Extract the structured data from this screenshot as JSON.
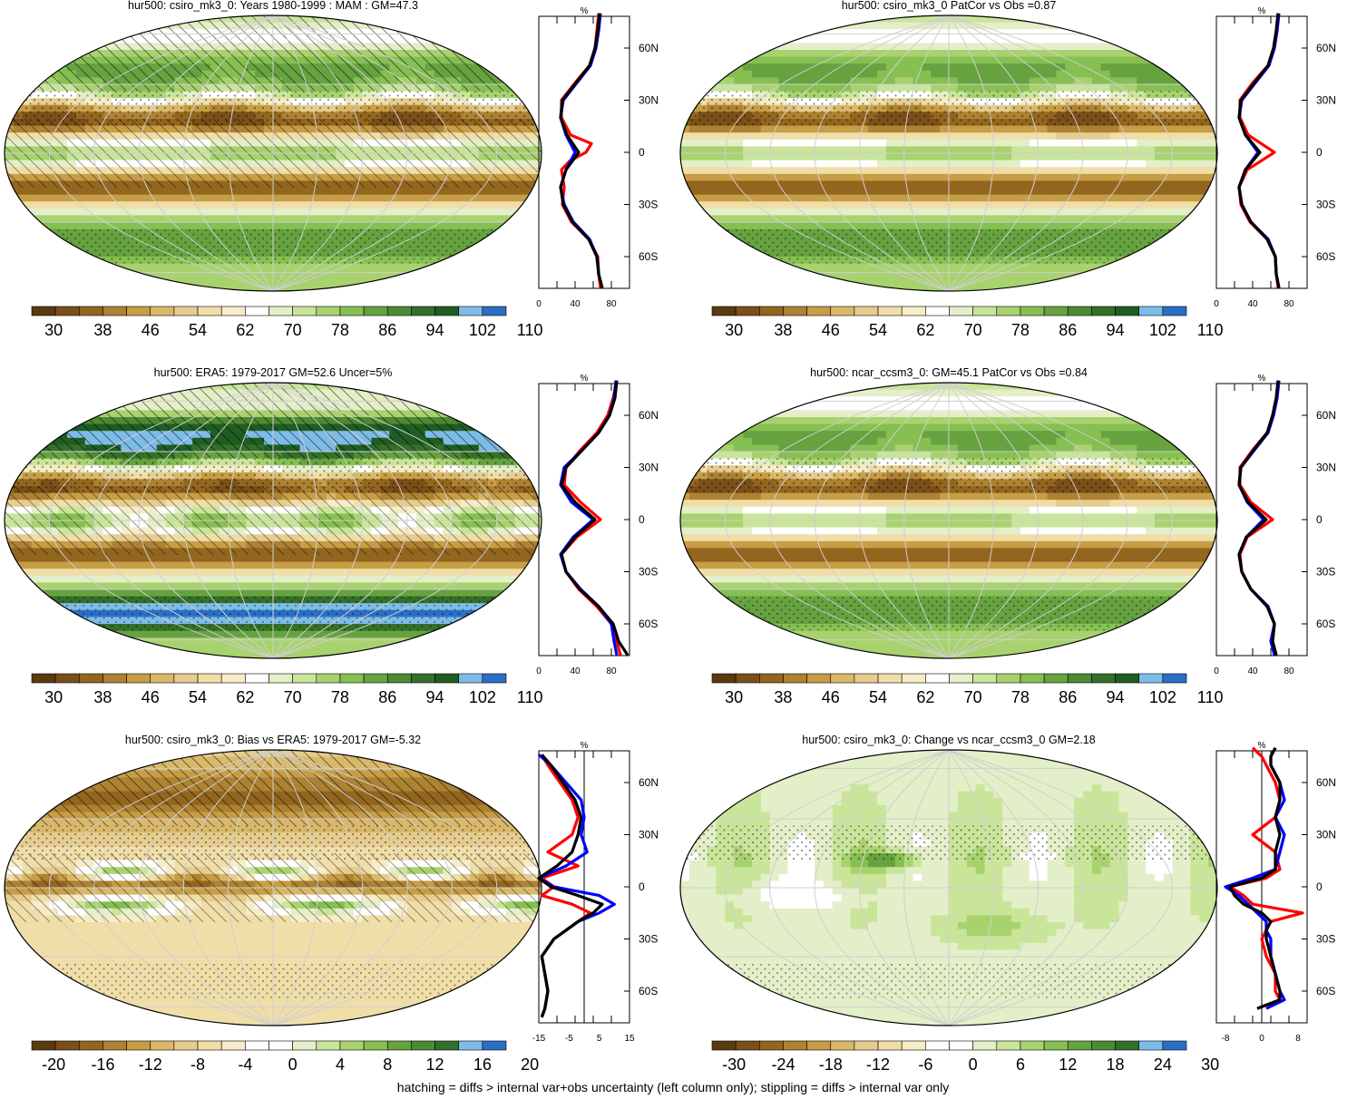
{
  "footer": "hatching = diffs > internal var+obs uncertainty (left column only); stippling = diffs > internal var only",
  "palettes": {
    "abs": [
      "#5b3a10",
      "#7a4f18",
      "#93661f",
      "#ad8233",
      "#c79d45",
      "#d9b86a",
      "#e6cc8e",
      "#f0dea9",
      "#f7ecc8",
      "#ffffff",
      "#e3efc8",
      "#c9e59a",
      "#a8d26e",
      "#86bf52",
      "#66a23f",
      "#4e8a32",
      "#34702a",
      "#205d22",
      "#7ebce8",
      "#2a6fc4"
    ],
    "diff": [
      "#5b3a10",
      "#7a4f18",
      "#93661f",
      "#ad8233",
      "#c79d45",
      "#d9b86a",
      "#e6cc8e",
      "#f0dea9",
      "#f7ecc8",
      "#ffffff",
      "#ffffff",
      "#e3efc8",
      "#c9e59a",
      "#a8d26e",
      "#86bf52",
      "#66a23f",
      "#4e8a32",
      "#34702a",
      "#7ebce8",
      "#2a6fc4"
    ]
  },
  "panels": [
    {
      "title": "hur500: csiro_mk3_0: Years 1980-1999 : MAM : GM=47.3",
      "center": "dateline",
      "field": "abs",
      "cb_palette": "abs",
      "cb_labels": [
        "30",
        "38",
        "46",
        "54",
        "62",
        "70",
        "78",
        "86",
        "94",
        "102",
        "110"
      ],
      "prof_ticks": [
        "0",
        "40",
        "80"
      ]
    },
    {
      "title": "hur500: csiro_mk3_0 PatCor vs Obs =0.87",
      "center": "greenwich",
      "field": "abs",
      "cb_palette": "abs",
      "cb_labels": [
        "30",
        "38",
        "46",
        "54",
        "62",
        "70",
        "78",
        "86",
        "94",
        "102",
        "110"
      ],
      "prof_ticks": [
        "0",
        "40",
        "80"
      ]
    },
    {
      "title": "hur500: ERA5: 1979-2017 GM=52.6 Uncer=5%",
      "center": "dateline",
      "field": "era",
      "cb_palette": "abs",
      "cb_labels": [
        "30",
        "38",
        "46",
        "54",
        "62",
        "70",
        "78",
        "86",
        "94",
        "102",
        "110"
      ],
      "prof_ticks": [
        "0",
        "40",
        "80"
      ]
    },
    {
      "title": "hur500: ncar_ccsm3_0: GM=45.1 PatCor vs Obs =0.84",
      "center": "greenwich",
      "field": "abs",
      "cb_palette": "abs",
      "cb_labels": [
        "30",
        "38",
        "46",
        "54",
        "62",
        "70",
        "78",
        "86",
        "94",
        "102",
        "110"
      ],
      "prof_ticks": [
        "0",
        "40",
        "80"
      ]
    },
    {
      "title": "hur500: csiro_mk3_0: Bias vs ERA5: 1979-2017 GM=-5.32",
      "center": "dateline",
      "field": "bias",
      "cb_palette": "diff",
      "cb_labels": [
        "-20",
        "-16",
        "-12",
        "-8",
        "-4",
        "0",
        "4",
        "8",
        "12",
        "16",
        "20"
      ],
      "prof_ticks": [
        "-15",
        "-5",
        "5",
        "15"
      ]
    },
    {
      "title": "hur500: csiro_mk3_0: Change vs ncar_ccsm3_0 GM=2.18",
      "center": "greenwich",
      "field": "change",
      "cb_palette": "diff",
      "cb_labels": [
        "-30",
        "-24",
        "-18",
        "-12",
        "-6",
        "0",
        "6",
        "12",
        "18",
        "24",
        "30"
      ],
      "prof_ticks": [
        "-8",
        "0",
        "8"
      ]
    }
  ],
  "chart_data": {
    "type": "heatmap",
    "variable": "hur500",
    "units": "%",
    "lat_ticks": [
      "60N",
      "30N",
      "0",
      "30S",
      "60S"
    ],
    "profiles": [
      {
        "panel": 0,
        "xlim": [
          0,
          100
        ],
        "series": [
          {
            "color": "#ff0000",
            "lat": [
              80,
              70,
              60,
              50,
              40,
              30,
              20,
              10,
              5,
              0,
              -5,
              -10,
              -20,
              -30,
              -40,
              -50,
              -60,
              -70,
              -78
            ],
            "values": [
              66,
              64,
              62,
              56,
              40,
              25,
              25,
              35,
              58,
              52,
              34,
              25,
              28,
              26,
              36,
              55,
              65,
              66,
              68
            ]
          },
          {
            "color": "#0000ff",
            "lat": [
              80,
              70,
              60,
              50,
              40,
              30,
              20,
              10,
              0,
              -10,
              -20,
              -30,
              -40,
              -50,
              -60,
              -70
            ],
            "values": [
              68,
              66,
              63,
              57,
              42,
              27,
              24,
              30,
              40,
              30,
              24,
              28,
              38,
              56,
              64,
              66
            ]
          },
          {
            "color": "#000000",
            "lat": [
              80,
              70,
              60,
              50,
              40,
              30,
              20,
              10,
              0,
              -10,
              -20,
              -30,
              -40,
              -50,
              -60,
              -70,
              -78
            ],
            "values": [
              67,
              65,
              62,
              56,
              41,
              26,
              24,
              31,
              44,
              30,
              24,
              27,
              37,
              55,
              64,
              66,
              70
            ]
          }
        ]
      },
      {
        "panel": 1,
        "xlim": [
          0,
          100
        ],
        "series": [
          {
            "color": "#ff0000",
            "lat": [
              80,
              70,
              60,
              50,
              40,
              30,
              20,
              10,
              0,
              -10,
              -20,
              -30,
              -40,
              -50,
              -60,
              -70,
              -78
            ],
            "values": [
              68,
              66,
              63,
              57,
              40,
              26,
              26,
              35,
              64,
              34,
              25,
              27,
              37,
              56,
              65,
              66,
              68
            ]
          },
          {
            "color": "#0000ff",
            "lat": [
              80,
              70,
              60,
              50,
              40,
              30,
              20,
              10,
              0,
              -10,
              -20,
              -30,
              -40,
              -50,
              -60,
              -70,
              -78
            ],
            "values": [
              69,
              67,
              64,
              58,
              43,
              28,
              25,
              32,
              46,
              32,
              25,
              28,
              38,
              57,
              65,
              66,
              69
            ]
          },
          {
            "color": "#000000",
            "lat": [
              80,
              70,
              60,
              50,
              40,
              30,
              20,
              10,
              0,
              -10,
              -20,
              -30,
              -40,
              -50,
              -60,
              -70,
              -78
            ],
            "values": [
              68,
              66,
              63,
              57,
              42,
              27,
              25,
              32,
              48,
              32,
              25,
              28,
              38,
              56,
              65,
              66,
              69
            ]
          }
        ]
      },
      {
        "panel": 2,
        "xlim": [
          0,
          100
        ],
        "series": [
          {
            "color": "#ff0000",
            "lat": [
              80,
              70,
              60,
              50,
              40,
              30,
              20,
              10,
              0,
              -10,
              -20,
              -30,
              -40,
              -50,
              -60,
              -70,
              -78
            ],
            "values": [
              86,
              82,
              76,
              64,
              46,
              30,
              28,
              46,
              68,
              42,
              25,
              30,
              44,
              64,
              80,
              86,
              90
            ]
          },
          {
            "color": "#0000ff",
            "lat": [
              80,
              70,
              60,
              50,
              40,
              30,
              20,
              10,
              0,
              -10,
              -20,
              -30,
              -40,
              -50,
              -60,
              -70,
              -78
            ],
            "values": [
              85,
              83,
              78,
              66,
              48,
              28,
              24,
              36,
              60,
              38,
              24,
              30,
              46,
              66,
              80,
              83,
              86
            ]
          },
          {
            "color": "#000000",
            "lat": [
              80,
              70,
              60,
              50,
              40,
              30,
              20,
              10,
              0,
              -10,
              -20,
              -30,
              -40,
              -50,
              -60,
              -70,
              -78
            ],
            "values": [
              86,
              84,
              78,
              66,
              48,
              30,
              25,
              40,
              62,
              40,
              25,
              30,
              45,
              66,
              82,
              88,
              98
            ]
          }
        ]
      },
      {
        "panel": 3,
        "xlim": [
          0,
          100
        ],
        "series": [
          {
            "color": "#ff0000",
            "lat": [
              80,
              70,
              60,
              50,
              40,
              30,
              20,
              10,
              0,
              -10,
              -20,
              -30,
              -40,
              -50,
              -60,
              -70,
              -78
            ],
            "values": [
              68,
              66,
              62,
              56,
              40,
              26,
              26,
              38,
              62,
              34,
              26,
              28,
              38,
              56,
              64,
              62,
              66
            ]
          },
          {
            "color": "#0000ff",
            "lat": [
              80,
              70,
              60,
              50,
              40,
              30,
              20,
              10,
              0,
              -10,
              -20,
              -30,
              -40,
              -50,
              -60,
              -70,
              -78
            ],
            "values": [
              69,
              67,
              63,
              57,
              42,
              27,
              25,
              34,
              52,
              33,
              25,
              28,
              38,
              57,
              64,
              60,
              64
            ]
          },
          {
            "color": "#000000",
            "lat": [
              80,
              70,
              60,
              50,
              40,
              30,
              20,
              10,
              0,
              -10,
              -20,
              -30,
              -40,
              -50,
              -60,
              -70,
              -78
            ],
            "values": [
              68,
              66,
              62,
              56,
              41,
              27,
              25,
              35,
              55,
              33,
              25,
              28,
              38,
              56,
              64,
              62,
              66
            ]
          }
        ]
      },
      {
        "panel": 4,
        "xlim": [
          -15,
          15
        ],
        "zero_line": true,
        "series": [
          {
            "color": "#ff0000",
            "lat": [
              76,
              70,
              60,
              50,
              40,
              30,
              20,
              12,
              5,
              0,
              -5,
              -10,
              -15,
              -20,
              -25,
              -30,
              -40,
              -50,
              -60,
              -70,
              -75
            ],
            "values": [
              -14,
              -12,
              -8,
              -4,
              -2,
              -4,
              -12,
              -2,
              -14,
              -10,
              -14,
              -4,
              2,
              -2,
              -6,
              -10,
              -14,
              -13,
              -12,
              -13,
              -14
            ]
          },
          {
            "color": "#0000ff",
            "lat": [
              76,
              70,
              60,
              50,
              40,
              30,
              20,
              12,
              5,
              0,
              -5,
              -10,
              -15,
              -20,
              -25,
              -30,
              -40,
              -50,
              -60,
              -70,
              -75
            ],
            "values": [
              -15,
              -11,
              -6,
              -1,
              0,
              -1,
              1,
              -6,
              -15,
              -10,
              5,
              10,
              5,
              -2,
              -6,
              -10,
              -14,
              -13,
              -12,
              -13,
              -14
            ]
          },
          {
            "color": "#000000",
            "lat": [
              76,
              70,
              60,
              50,
              40,
              30,
              20,
              12,
              5,
              0,
              -5,
              -10,
              -15,
              -20,
              -25,
              -30,
              -40,
              -50,
              -60,
              -70,
              -75
            ],
            "values": [
              -14,
              -11,
              -7,
              -3,
              -1,
              -2,
              -4,
              -9,
              -15,
              -11,
              -2,
              6,
              3,
              -2,
              -6,
              -10,
              -14,
              -13,
              -12,
              -13,
              -14
            ]
          }
        ]
      },
      {
        "panel": 5,
        "xlim": [
          -10,
          10
        ],
        "zero_line": true,
        "series": [
          {
            "color": "#ff0000",
            "lat": [
              80,
              75,
              70,
              60,
              50,
              40,
              30,
              20,
              10,
              5,
              0,
              -5,
              -10,
              -15,
              -20,
              -25,
              -30,
              -40,
              -50,
              -60,
              -65,
              -70
            ],
            "values": [
              -2,
              0,
              1,
              3,
              4,
              3,
              -2,
              3,
              4,
              1,
              -7,
              -4,
              -2,
              9,
              2,
              1,
              0,
              1,
              3,
              3,
              4,
              -1
            ]
          },
          {
            "color": "#0000ff",
            "lat": [
              80,
              75,
              70,
              60,
              50,
              40,
              30,
              20,
              10,
              5,
              0,
              -5,
              -10,
              -15,
              -20,
              -25,
              -30,
              -40,
              -50,
              -60,
              -65,
              -70
            ],
            "values": [
              3,
              2,
              2,
              4,
              5,
              3,
              5,
              4,
              3,
              -2,
              -8,
              -5,
              -3,
              -1,
              1,
              1,
              2,
              2,
              3,
              4,
              5,
              1
            ]
          },
          {
            "color": "#000000",
            "lat": [
              80,
              75,
              70,
              60,
              50,
              40,
              30,
              20,
              10,
              5,
              0,
              -5,
              -10,
              -15,
              -20,
              -25,
              -30,
              -40,
              -50,
              -60,
              -65,
              -70
            ],
            "values": [
              3,
              2,
              2,
              4,
              4,
              3,
              4,
              3,
              3,
              0,
              -7,
              -6,
              -4,
              0,
              2,
              1,
              1,
              2,
              3,
              4,
              4,
              -1
            ]
          }
        ]
      }
    ]
  }
}
